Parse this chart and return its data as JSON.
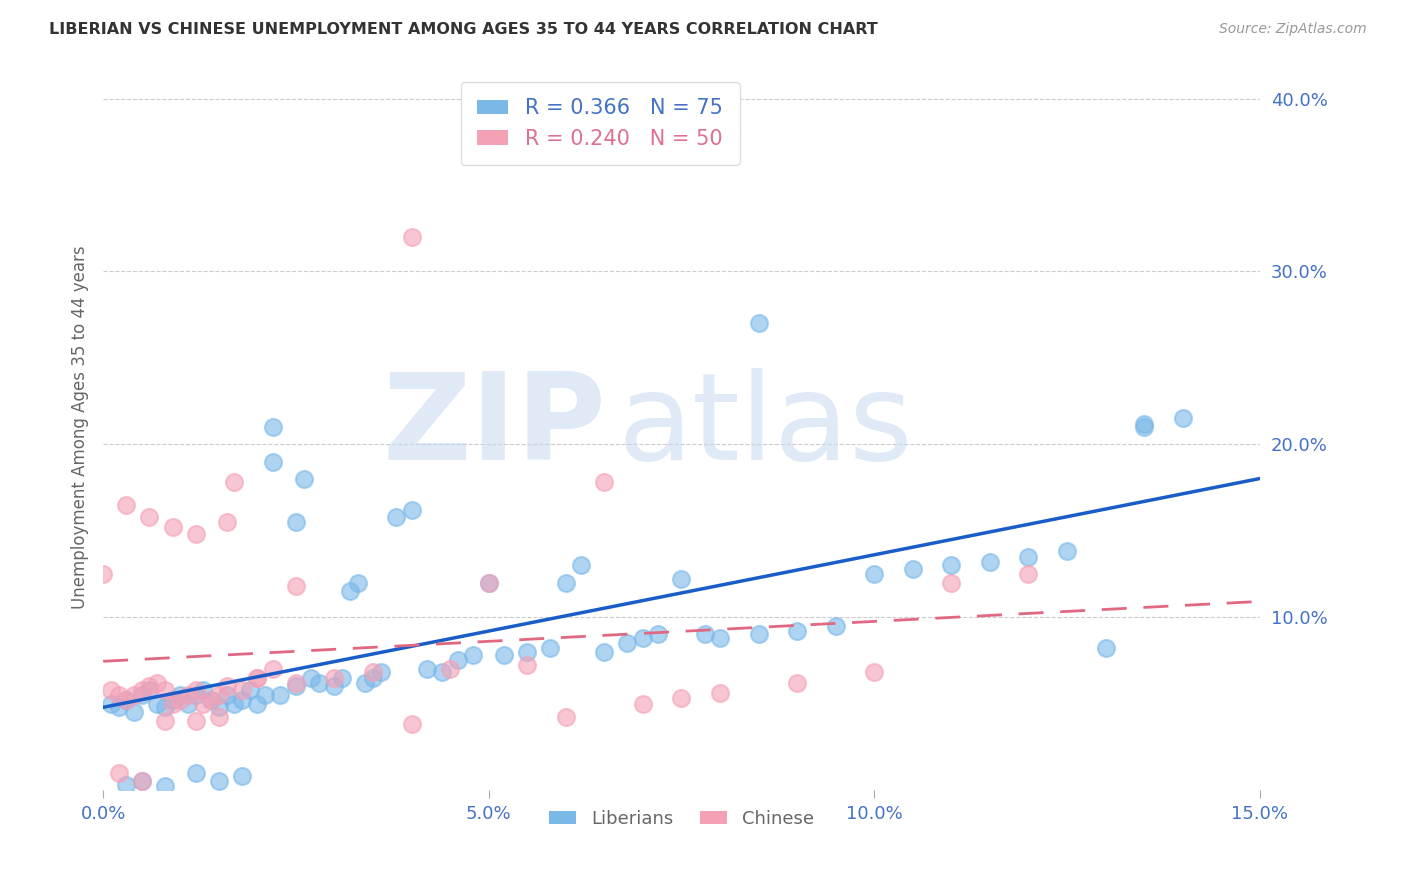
{
  "title": "LIBERIAN VS CHINESE UNEMPLOYMENT AMONG AGES 35 TO 44 YEARS CORRELATION CHART",
  "source": "Source: ZipAtlas.com",
  "ylabel": "Unemployment Among Ages 35 to 44 years",
  "xlim": [
    0.0,
    0.15
  ],
  "ylim": [
    0.0,
    0.42
  ],
  "xticks": [
    0.0,
    0.05,
    0.1,
    0.15
  ],
  "xtick_labels": [
    "0.0%",
    "5.0%",
    "10.0%",
    "15.0%"
  ],
  "yticks_right": [
    0.1,
    0.2,
    0.3,
    0.4
  ],
  "ytick_labels_right": [
    "10.0%",
    "20.0%",
    "30.0%",
    "40.0%"
  ],
  "liberian_color": "#7ab8e8",
  "chinese_color": "#f4a0b5",
  "liberian_line_color": "#1a5dc8",
  "chinese_line_color": "#e06882",
  "liberian_R": 0.366,
  "liberian_N": 75,
  "chinese_R": 0.24,
  "chinese_N": 50,
  "watermark_zip": "ZIP",
  "watermark_atlas": "atlas",
  "bg_color": "#ffffff",
  "grid_color": "#cccccc",
  "axis_tick_color": "#4472c4",
  "title_color": "#333333",
  "source_color": "#999999",
  "ylabel_color": "#666666",
  "legend_lib_color": "#4472c4",
  "legend_chi_color": "#e07090",
  "liberian_x": [
    0.001,
    0.002,
    0.003,
    0.004,
    0.005,
    0.006,
    0.007,
    0.008,
    0.009,
    0.01,
    0.011,
    0.012,
    0.013,
    0.014,
    0.015,
    0.016,
    0.017,
    0.018,
    0.019,
    0.02,
    0.021,
    0.022,
    0.023,
    0.025,
    0.026,
    0.027,
    0.028,
    0.03,
    0.031,
    0.032,
    0.033,
    0.034,
    0.035,
    0.036,
    0.038,
    0.04,
    0.042,
    0.044,
    0.046,
    0.048,
    0.05,
    0.052,
    0.055,
    0.058,
    0.06,
    0.062,
    0.065,
    0.068,
    0.07,
    0.072,
    0.075,
    0.078,
    0.08,
    0.085,
    0.09,
    0.095,
    0.1,
    0.105,
    0.11,
    0.115,
    0.12,
    0.125,
    0.13,
    0.135,
    0.14,
    0.003,
    0.015,
    0.018,
    0.022,
    0.025,
    0.005,
    0.008,
    0.012,
    0.085,
    0.135
  ],
  "liberian_y": [
    0.05,
    0.048,
    0.052,
    0.045,
    0.055,
    0.058,
    0.05,
    0.048,
    0.052,
    0.055,
    0.05,
    0.055,
    0.058,
    0.052,
    0.048,
    0.055,
    0.05,
    0.052,
    0.058,
    0.05,
    0.055,
    0.19,
    0.055,
    0.06,
    0.18,
    0.065,
    0.062,
    0.06,
    0.065,
    0.115,
    0.12,
    0.062,
    0.065,
    0.068,
    0.158,
    0.162,
    0.07,
    0.068,
    0.075,
    0.078,
    0.12,
    0.078,
    0.08,
    0.082,
    0.12,
    0.13,
    0.08,
    0.085,
    0.088,
    0.09,
    0.122,
    0.09,
    0.088,
    0.09,
    0.092,
    0.095,
    0.125,
    0.128,
    0.13,
    0.132,
    0.135,
    0.138,
    0.082,
    0.212,
    0.215,
    0.003,
    0.005,
    0.008,
    0.21,
    0.155,
    0.005,
    0.002,
    0.01,
    0.27,
    0.21
  ],
  "chinese_x": [
    0.0,
    0.001,
    0.002,
    0.003,
    0.004,
    0.005,
    0.006,
    0.007,
    0.008,
    0.009,
    0.01,
    0.011,
    0.012,
    0.013,
    0.014,
    0.015,
    0.016,
    0.017,
    0.018,
    0.02,
    0.022,
    0.025,
    0.03,
    0.035,
    0.04,
    0.045,
    0.05,
    0.055,
    0.06,
    0.065,
    0.07,
    0.075,
    0.08,
    0.09,
    0.1,
    0.11,
    0.12,
    0.002,
    0.005,
    0.008,
    0.012,
    0.015,
    0.003,
    0.006,
    0.009,
    0.012,
    0.016,
    0.02,
    0.025,
    0.04
  ],
  "chinese_y": [
    0.125,
    0.058,
    0.055,
    0.052,
    0.055,
    0.058,
    0.06,
    0.062,
    0.058,
    0.05,
    0.052,
    0.055,
    0.058,
    0.05,
    0.052,
    0.055,
    0.06,
    0.178,
    0.058,
    0.065,
    0.07,
    0.062,
    0.065,
    0.068,
    0.32,
    0.07,
    0.12,
    0.072,
    0.042,
    0.178,
    0.05,
    0.053,
    0.056,
    0.062,
    0.068,
    0.12,
    0.125,
    0.01,
    0.005,
    0.04,
    0.04,
    0.042,
    0.165,
    0.158,
    0.152,
    0.148,
    0.155,
    0.065,
    0.118,
    0.038
  ]
}
